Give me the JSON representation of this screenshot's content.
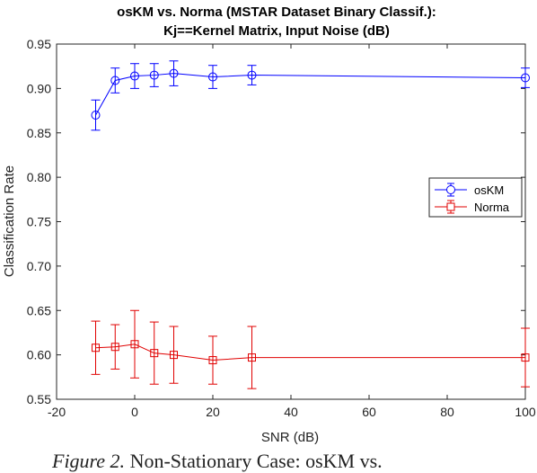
{
  "chart_data": {
    "type": "line",
    "title_line1": "osKM vs. Norma (MSTAR Dataset Binary Classif.):",
    "title_line2": "Kj==Kernel Matrix, Input Noise (dB)",
    "xlabel": "SNR (dB)",
    "ylabel": "Classification Rate",
    "xlim": [
      -20,
      100
    ],
    "ylim": [
      0.55,
      0.95
    ],
    "xticks": [
      -20,
      0,
      20,
      40,
      60,
      80,
      100
    ],
    "yticks": [
      0.55,
      0.6,
      0.65,
      0.7,
      0.75,
      0.8,
      0.85,
      0.9,
      0.95
    ],
    "grid": false,
    "legend_position": "right",
    "x": [
      -10,
      -5,
      0,
      5,
      10,
      20,
      30,
      100
    ],
    "series": [
      {
        "name": "osKM",
        "color": "#0000ff",
        "marker": "circle",
        "values": [
          0.87,
          0.909,
          0.914,
          0.915,
          0.917,
          0.913,
          0.915,
          0.912
        ],
        "error": [
          0.017,
          0.014,
          0.014,
          0.013,
          0.014,
          0.013,
          0.011,
          0.011
        ]
      },
      {
        "name": "Norma",
        "color": "#e00000",
        "marker": "square",
        "values": [
          0.608,
          0.609,
          0.612,
          0.602,
          0.6,
          0.594,
          0.597,
          0.597
        ],
        "error": [
          0.03,
          0.025,
          0.038,
          0.035,
          0.032,
          0.027,
          0.035,
          0.033
        ]
      }
    ]
  },
  "caption": {
    "figure_label": "Figure 2.",
    "text": " Non-Stationary Case: osKM vs."
  }
}
